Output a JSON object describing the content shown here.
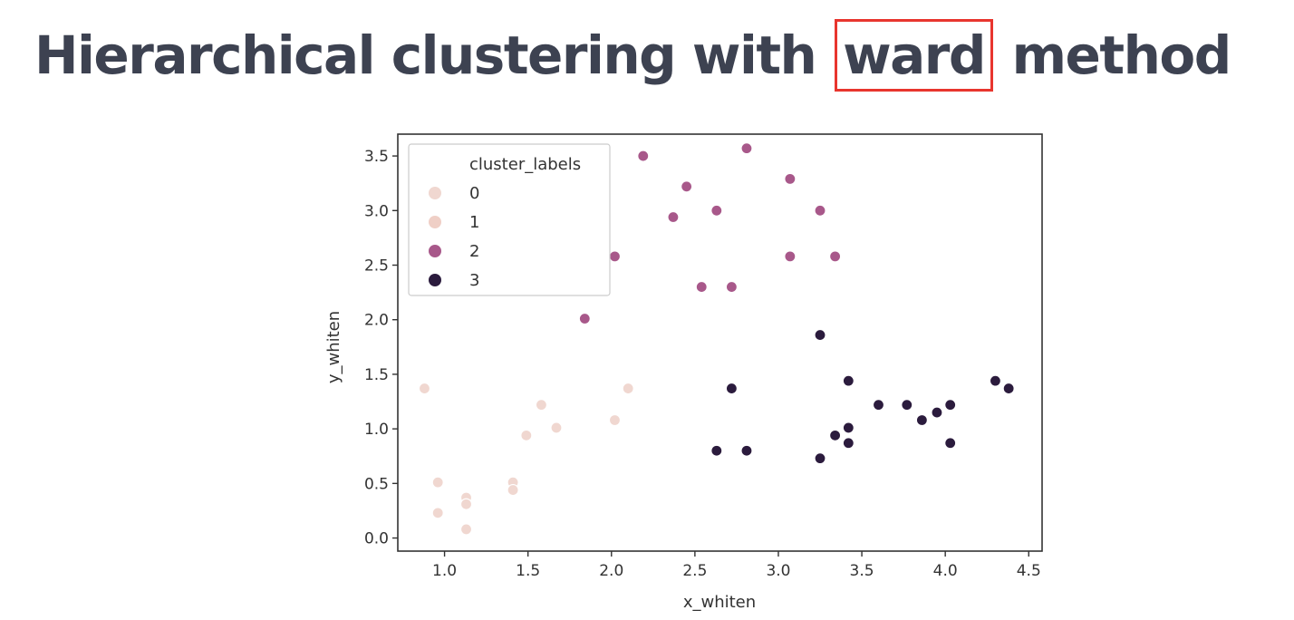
{
  "slide": {
    "title_before": "Hierarchical clustering with",
    "title_highlight": "ward",
    "title_after": "method",
    "highlight_color": "#e8352e",
    "text_color": "#3d4251"
  },
  "chart_data": {
    "type": "scatter",
    "xlabel": "x_whiten",
    "ylabel": "y_whiten",
    "xlim": [
      0.72,
      4.58
    ],
    "ylim": [
      -0.12,
      3.7
    ],
    "xticks": [
      "1.0",
      "1.5",
      "2.0",
      "2.5",
      "3.0",
      "3.5",
      "4.0",
      "4.5"
    ],
    "yticks": [
      "0.0",
      "0.5",
      "1.0",
      "1.5",
      "2.0",
      "2.5",
      "3.0",
      "3.5"
    ],
    "grid": false,
    "legend": {
      "title": "cluster_labels",
      "placement": "top-left",
      "entries": [
        "0",
        "1",
        "2",
        "3"
      ]
    },
    "series": [
      {
        "name": "0",
        "color": "#f0d7d0",
        "points": [
          [
            0.88,
            1.37
          ],
          [
            0.96,
            0.51
          ],
          [
            0.96,
            0.23
          ],
          [
            1.13,
            0.37
          ],
          [
            1.13,
            0.31
          ],
          [
            1.13,
            0.08
          ],
          [
            1.41,
            0.51
          ],
          [
            1.41,
            0.44
          ],
          [
            1.49,
            0.94
          ],
          [
            1.58,
            1.22
          ],
          [
            1.67,
            1.01
          ],
          [
            2.02,
            1.08
          ],
          [
            2.1,
            1.37
          ]
        ]
      },
      {
        "name": "1",
        "color": "#efcfc6",
        "points": []
      },
      {
        "name": "2",
        "color": "#a8588a",
        "points": [
          [
            1.84,
            2.01
          ],
          [
            2.02,
            2.58
          ],
          [
            2.19,
            3.5
          ],
          [
            2.37,
            2.94
          ],
          [
            2.45,
            3.22
          ],
          [
            2.54,
            2.3
          ],
          [
            2.63,
            3.0
          ],
          [
            2.72,
            2.3
          ],
          [
            2.81,
            3.57
          ],
          [
            3.07,
            3.29
          ],
          [
            3.07,
            2.58
          ],
          [
            3.25,
            3.0
          ],
          [
            3.34,
            2.58
          ]
        ]
      },
      {
        "name": "3",
        "color": "#2b1b3d",
        "points": [
          [
            2.63,
            0.8
          ],
          [
            2.72,
            1.37
          ],
          [
            2.81,
            0.8
          ],
          [
            3.25,
            1.86
          ],
          [
            3.25,
            0.73
          ],
          [
            3.34,
            0.94
          ],
          [
            3.42,
            1.44
          ],
          [
            3.42,
            1.01
          ],
          [
            3.42,
            0.87
          ],
          [
            3.6,
            1.22
          ],
          [
            3.77,
            1.22
          ],
          [
            3.86,
            1.08
          ],
          [
            3.95,
            1.15
          ],
          [
            4.03,
            1.22
          ],
          [
            4.03,
            0.87
          ],
          [
            4.3,
            1.44
          ],
          [
            4.38,
            1.37
          ]
        ]
      }
    ]
  }
}
